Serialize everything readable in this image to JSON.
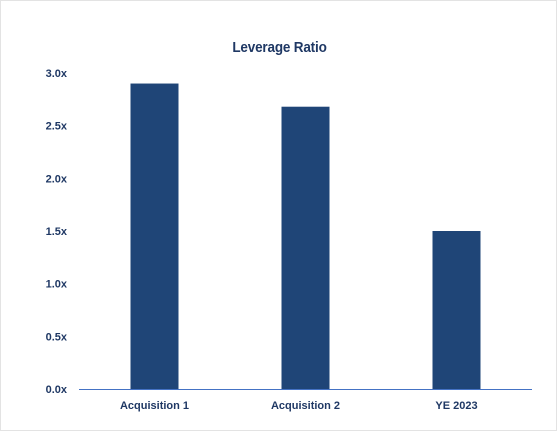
{
  "chart_data": {
    "type": "bar",
    "title": "Leverage Ratio",
    "categories": [
      "Acquisition 1",
      "Acquisition 2",
      "YE 2023"
    ],
    "values": [
      2.9,
      2.68,
      1.5
    ],
    "ylim": [
      0,
      3.0
    ],
    "yticks": [
      0.0,
      0.5,
      1.0,
      1.5,
      2.0,
      2.5,
      3.0
    ],
    "ytick_labels": [
      "0.0x",
      "0.5x",
      "1.0x",
      "1.5x",
      "2.0x",
      "2.5x",
      "3.0x"
    ],
    "xlabel": "",
    "ylabel": "",
    "grid": false,
    "legend": "none",
    "colors": {
      "bar": "#1f4577",
      "text": "#1f3864",
      "axis": "#4472c4"
    }
  }
}
